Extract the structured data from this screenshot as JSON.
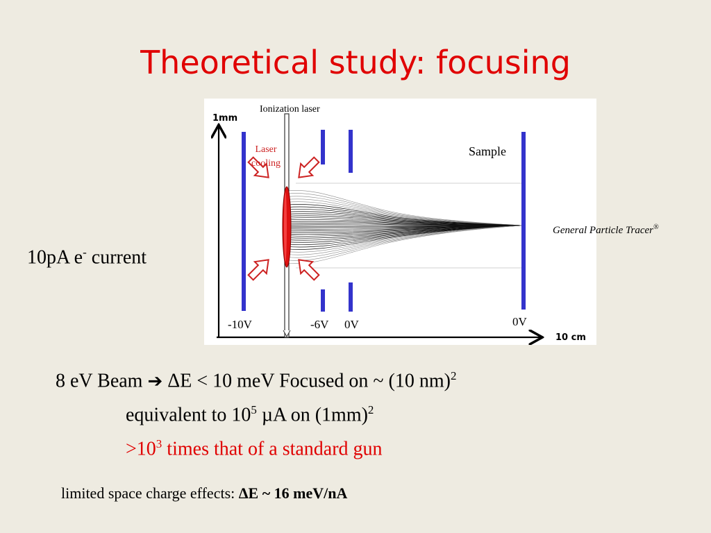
{
  "slide": {
    "title": "Theoretical study: focusing"
  },
  "figure": {
    "label_1mm": "1mm",
    "label_10cm": "10 cm",
    "ionization_laser": "Ionization laser",
    "laser_cooling_line1": "Laser",
    "laser_cooling_line2": "cooling",
    "sample": "Sample",
    "electrode_labels": [
      "-10V",
      "-6V",
      "0V",
      "0V"
    ],
    "colors": {
      "electrode": "#3333cc",
      "cooling": "#cc2222",
      "trajectories": "#000000"
    }
  },
  "tracer": {
    "text": "General Particle Tracer",
    "mark": "®"
  },
  "current": {
    "prefix": "10pA e",
    "sup": "-",
    "suffix": " current"
  },
  "beam": {
    "part1": "8 eV Beam ",
    "arrow": "➔",
    "part2": " ΔE < 10 meV Focused on ~ (10 nm)",
    "sup": "2"
  },
  "equiv": {
    "part1": "equivalent to 10",
    "sup1": "5",
    "part2": " µA on (1mm)",
    "sup2": "2"
  },
  "times": {
    "part1": ">10",
    "sup": "3",
    "part2": " times that of a standard gun"
  },
  "space_charge": {
    "normal": "limited space charge effects: ",
    "bold": "ΔE ~ 16 meV/nA"
  }
}
